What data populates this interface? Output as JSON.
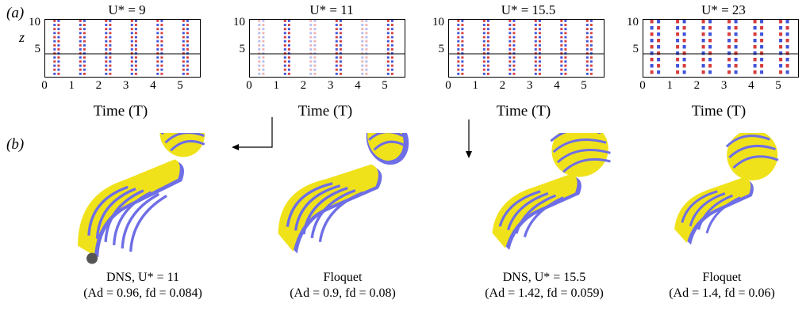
{
  "panel_a_label": "(a)",
  "panel_b_label": "(b)",
  "plots": [
    {
      "title": "U* = 9",
      "ylabel": "z",
      "xlabel": "Time (T)",
      "yticks": [
        "10",
        "5"
      ],
      "xticks": [
        "0",
        "1",
        "2",
        "3",
        "4",
        "5"
      ],
      "pattern": "regular",
      "color_main": "#d32626",
      "color_alt": "#2a3fd6"
    },
    {
      "title": "U* = 11",
      "ylabel": "",
      "xlabel": "Time (T)",
      "yticks": [
        "10",
        "5"
      ],
      "xticks": [
        "0",
        "1",
        "2",
        "3",
        "4",
        "5"
      ],
      "pattern": "mixed",
      "color_main": "#d32626",
      "color_alt": "#2a3fd6"
    },
    {
      "title": "U* = 15.5",
      "ylabel": "",
      "xlabel": "Time (T)",
      "yticks": [
        "10",
        "5"
      ],
      "xticks": [
        "0",
        "1",
        "2",
        "3",
        "4",
        "5"
      ],
      "pattern": "regular",
      "color_main": "#d32626",
      "color_alt": "#2a3fd6"
    },
    {
      "title": "U* = 23",
      "ylabel": "",
      "xlabel": "Time (T)",
      "yticks": [
        "10",
        "5"
      ],
      "xticks": [
        "0",
        "1",
        "2",
        "3",
        "4",
        "5"
      ],
      "pattern": "dense",
      "color_main": "#d32626",
      "color_alt": "#2a3fd6"
    }
  ],
  "captions": [
    {
      "line1": "DNS, U* = 11",
      "line2": "(Ad = 0.96, fd = 0.084)"
    },
    {
      "line1": "Floquet",
      "line2": "(Ad = 0.9, fd = 0.08)"
    },
    {
      "line1": "DNS, U* = 15.5",
      "line2": "(Ad = 1.42, fd = 0.059)"
    },
    {
      "line1": "Floquet",
      "line2": "(Ad = 1.4, fd = 0.06)"
    }
  ],
  "colors": {
    "iso_positive": "#f0e21a",
    "iso_negative": "#6e6ee6",
    "frame": "#000000"
  }
}
